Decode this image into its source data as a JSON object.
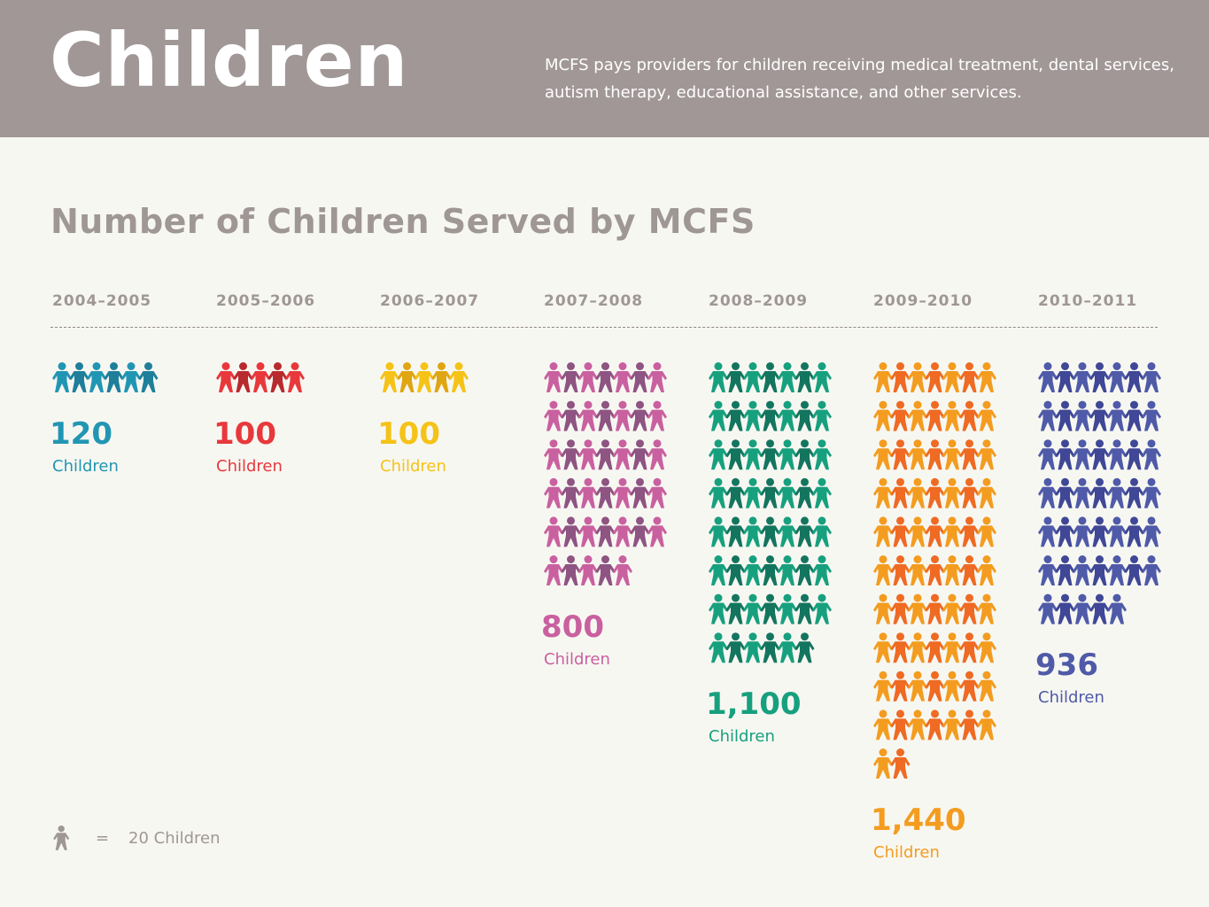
{
  "header": {
    "title": "Children",
    "description": "MCFS pays providers for children receiving medical treatment, dental services, autism therapy, educational assistance, and other services."
  },
  "legend": {
    "equals": "=",
    "text": "20 Children",
    "icon_color": "#9f9696",
    "icon": "person-icon"
  },
  "chart_data": {
    "type": "bar",
    "title": "Number of Children Served by MCFS",
    "xlabel": "",
    "ylabel": "",
    "unit_per_icon": 20,
    "categories": [
      "2004–2005",
      "2005–2006",
      "2006–2007",
      "2007–2008",
      "2008–2009",
      "2009–2010",
      "2010–2011"
    ],
    "values": [
      120,
      100,
      100,
      800,
      1100,
      1440,
      936
    ],
    "value_labels": [
      "120",
      "100",
      "100",
      "800",
      "1,100",
      "1,440",
      "936"
    ],
    "unit_label": "Children",
    "colors": [
      [
        "#2196b3",
        "#1f7f9a"
      ],
      [
        "#e8383b",
        "#b82a2e"
      ],
      [
        "#f5c217",
        "#e0a512"
      ],
      [
        "#c9609f",
        "#8e5482"
      ],
      [
        "#17a07e",
        "#14755f"
      ],
      [
        "#f39c1f",
        "#ef6a23"
      ],
      [
        "#4f5aa8",
        "#3f4796"
      ]
    ]
  }
}
